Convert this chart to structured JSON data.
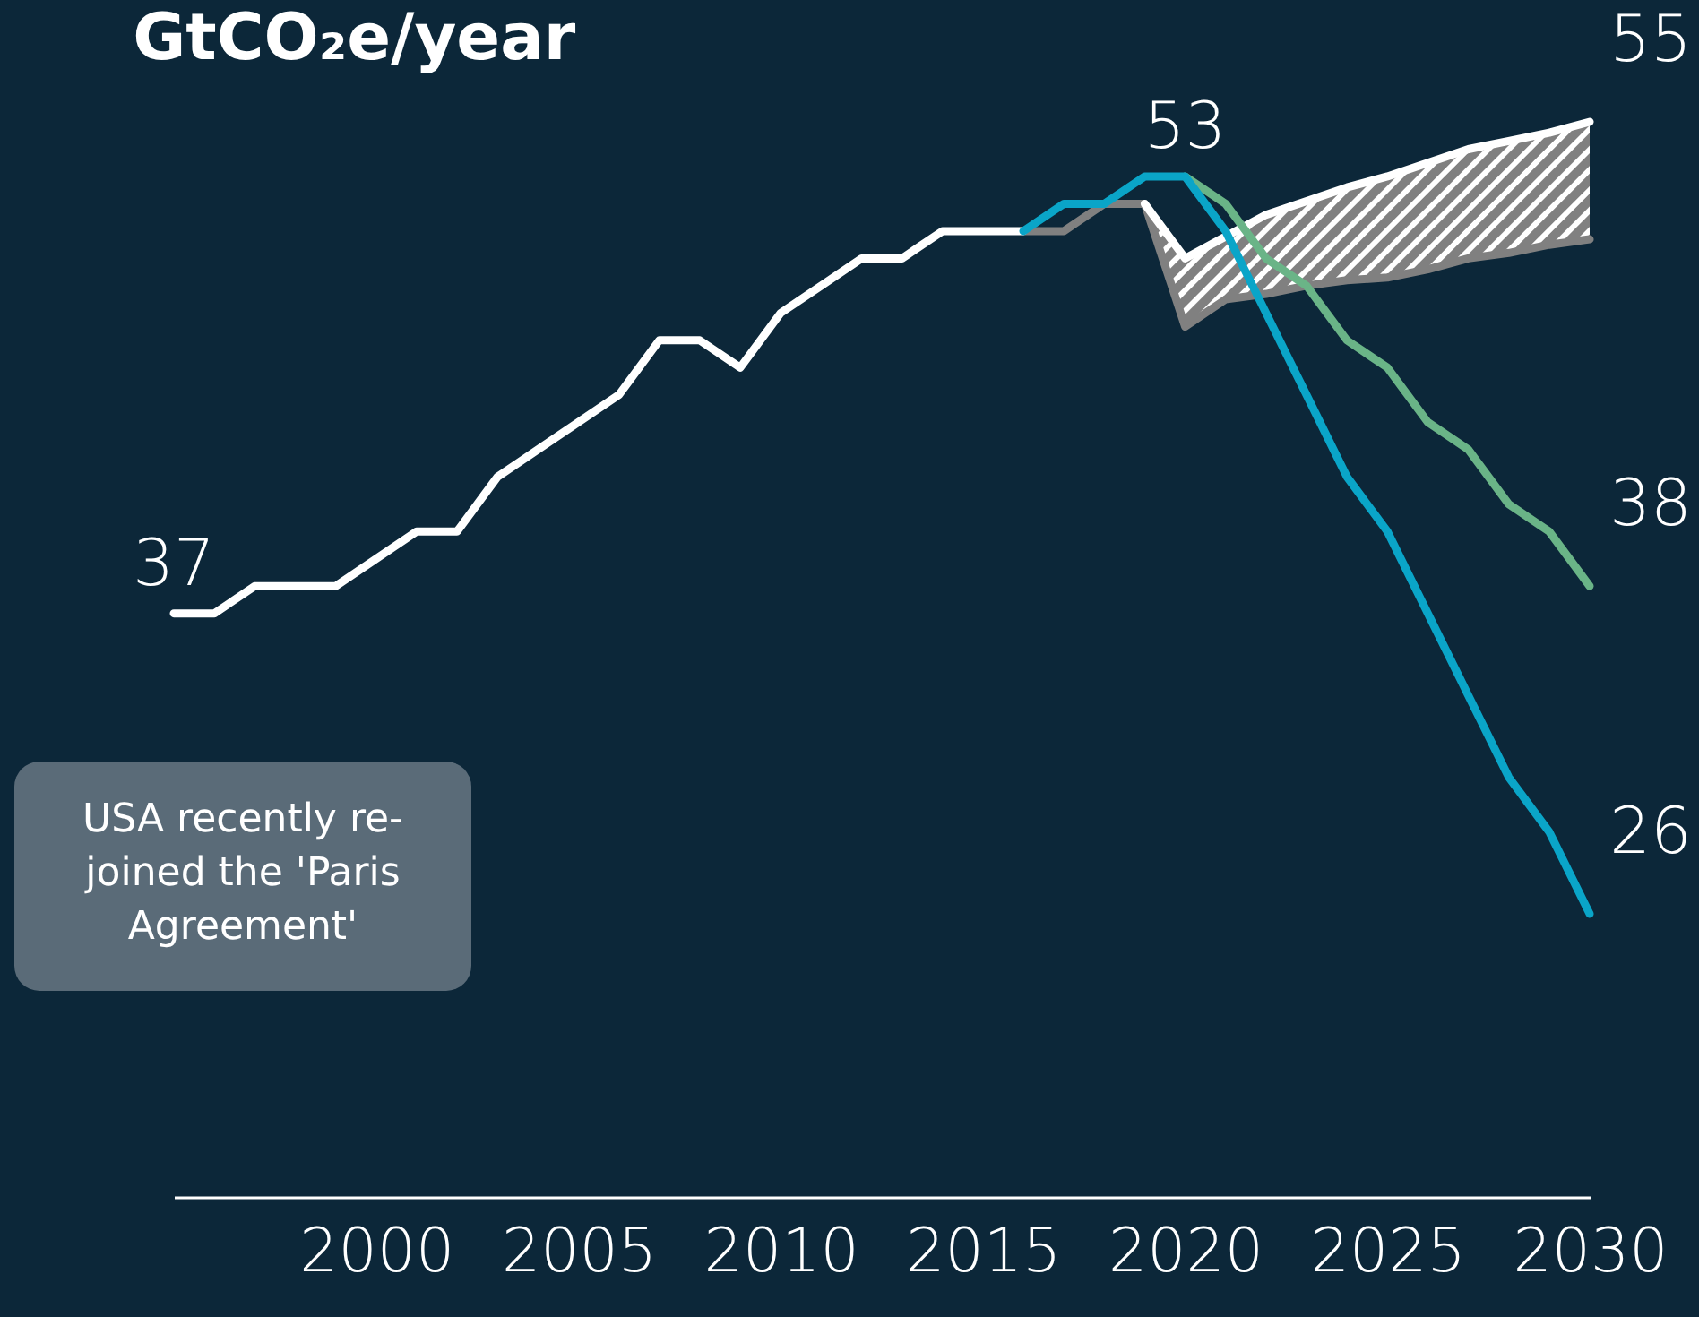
{
  "chart_data": {
    "type": "line",
    "title": "GtCO₂e/year",
    "xlim": [
      1995,
      2030
    ],
    "xticks": [
      2000,
      2005,
      2010,
      2015,
      2020,
      2025,
      2030
    ],
    "tick_labels": "x",
    "grid": false,
    "line_style": "solid",
    "marker": "none",
    "series": [
      {
        "color": "#808080",
        "x": [
          2016,
          2017,
          2018,
          2019,
          2020,
          2021,
          2022,
          2023,
          2024,
          2025,
          2026,
          2027,
          2028,
          2029,
          2030
        ],
        "values": [
          51,
          51,
          52,
          52,
          47.5,
          48.5,
          48.7,
          49,
          49.2,
          49.3,
          49.6,
          50,
          50.2,
          50.5,
          50.7
        ],
        "lower": [
          51,
          51,
          52,
          52,
          47.5,
          48.5,
          48.7,
          49,
          49.2,
          49.3,
          49.6,
          50,
          50.2,
          50.5,
          50.7
        ],
        "upper": [
          51,
          51,
          52,
          52,
          50,
          50.8,
          51.6,
          52.1,
          52.6,
          53,
          53.5,
          54,
          54.3,
          54.6,
          55
        ]
      },
      {
        "color": "#ffffff",
        "x": [
          1995,
          1996,
          1997,
          1998,
          1999,
          2000,
          2001,
          2002,
          2003,
          2004,
          2005,
          2006,
          2007,
          2008,
          2009,
          2010,
          2011,
          2012,
          2013,
          2014,
          2015,
          2016
        ],
        "values": [
          37,
          37,
          38,
          38,
          38,
          39,
          40,
          40,
          42,
          43,
          44,
          45,
          47,
          47,
          46,
          48,
          49,
          50,
          50,
          51,
          51,
          51
        ],
        "value_labels": [
          "37",
          null,
          null,
          null,
          null,
          null,
          null,
          null,
          null,
          null,
          null,
          null,
          null,
          null,
          null,
          null,
          null,
          null,
          null,
          null,
          null,
          null
        ]
      },
      {
        "color": "#ffffff",
        "x": [
          2019,
          2020,
          2021,
          2022,
          2023,
          2024,
          2025,
          2026,
          2027,
          2028,
          2029,
          2030
        ],
        "values": [
          52,
          50,
          50.8,
          51.6,
          52.1,
          52.6,
          53,
          53.5,
          54,
          54.3,
          54.6,
          55
        ],
        "value_labels": [
          null,
          null,
          null,
          null,
          null,
          null,
          null,
          null,
          null,
          null,
          null,
          "55"
        ]
      },
      {
        "color": "#6ab487",
        "x": [
          2020,
          2021,
          2022,
          2023,
          2024,
          2025,
          2026,
          2027,
          2028,
          2029,
          2030
        ],
        "values": [
          53,
          52,
          50,
          49,
          47,
          46,
          44,
          43,
          41,
          40,
          38
        ],
        "value_labels": [
          null,
          null,
          null,
          null,
          null,
          null,
          null,
          null,
          null,
          null,
          "38"
        ]
      },
      {
        "color": "#0aa5c8",
        "x": [
          2016,
          2017,
          2018,
          2019,
          2020,
          2021,
          2022,
          2023,
          2024,
          2025,
          2026,
          2027,
          2028,
          2029,
          2030
        ],
        "values": [
          51,
          52,
          52,
          53,
          53,
          51,
          48,
          45,
          42,
          40,
          37,
          34,
          31,
          29,
          26
        ],
        "value_labels": [
          null,
          null,
          null,
          null,
          "53",
          null,
          null,
          null,
          null,
          null,
          null,
          null,
          null,
          null,
          "26"
        ]
      }
    ],
    "annotations": [
      "USA recently re-joined the 'Paris Agreement'"
    ]
  }
}
